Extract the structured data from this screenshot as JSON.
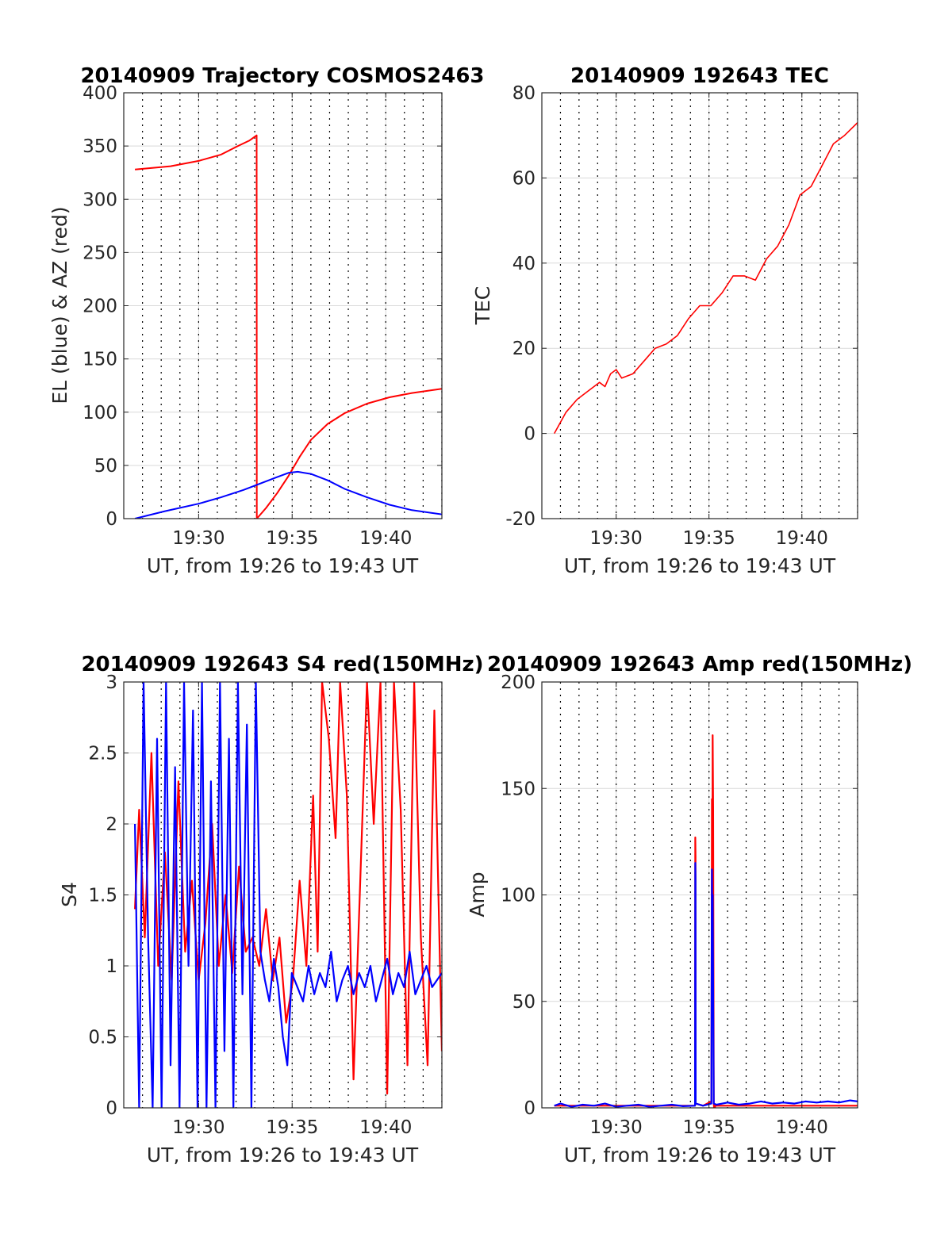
{
  "colors": {
    "el": "#0000ff",
    "az": "#ff0000",
    "tec": "#ff0000",
    "s4_red": "#ff0000",
    "s4_blue": "#0000ff",
    "amp_red": "#ff0000",
    "amp_blue": "#0000ff",
    "grid": "#d9d9d9",
    "dotted": "#000000"
  },
  "chart_data": [
    {
      "id": "trajectory",
      "type": "line",
      "title": "20140909 Trajectory COSMOS2463",
      "xlabel": "UT, from 19:26 to 19:43 UT",
      "ylabel": "EL (blue) & AZ (red)",
      "xlim": [
        19.4333,
        19.7167
      ],
      "ylim": [
        0,
        400
      ],
      "xticks": [
        {
          "v": 19.5,
          "label": "19:30"
        },
        {
          "v": 19.5833,
          "label": "19:35"
        },
        {
          "v": 19.6667,
          "label": "19:40"
        }
      ],
      "yticks": [
        {
          "v": 0,
          "label": "0"
        },
        {
          "v": 50,
          "label": "50"
        },
        {
          "v": 100,
          "label": "100"
        },
        {
          "v": 150,
          "label": "150"
        },
        {
          "v": 200,
          "label": "200"
        },
        {
          "v": 250,
          "label": "250"
        },
        {
          "v": 300,
          "label": "300"
        },
        {
          "v": 350,
          "label": "350"
        },
        {
          "v": 400,
          "label": "400"
        }
      ],
      "grid": true,
      "series": [
        {
          "key": "az",
          "x": [
            19.4433,
            19.475,
            19.5,
            19.52,
            19.535,
            19.545,
            19.5517,
            19.5518,
            19.56,
            19.57,
            19.58,
            19.59,
            19.6,
            19.615,
            19.63,
            19.65,
            19.67,
            19.69,
            19.7167
          ],
          "values": [
            328,
            331,
            336,
            342,
            350,
            355,
            360,
            0,
            10,
            24,
            40,
            58,
            74,
            89,
            99,
            108,
            114,
            118,
            122
          ]
        },
        {
          "key": "el",
          "x": [
            19.4433,
            19.47,
            19.5,
            19.52,
            19.54,
            19.555,
            19.57,
            19.58,
            19.5883,
            19.6,
            19.615,
            19.63,
            19.65,
            19.67,
            19.69,
            19.7167
          ],
          "values": [
            0,
            7,
            14,
            20,
            27,
            33,
            39,
            43,
            44,
            42,
            36,
            28,
            20,
            13,
            8,
            4
          ]
        }
      ]
    },
    {
      "id": "tec",
      "type": "line",
      "title": "20140909 192643 TEC",
      "xlabel": "UT, from 19:26 to 19:43 UT",
      "ylabel": "TEC",
      "xlim": [
        19.4333,
        19.7167
      ],
      "ylim": [
        -20,
        80
      ],
      "xticks": [
        {
          "v": 19.5,
          "label": "19:30"
        },
        {
          "v": 19.5833,
          "label": "19:35"
        },
        {
          "v": 19.6667,
          "label": "19:40"
        }
      ],
      "yticks": [
        {
          "v": -20,
          "label": "-20"
        },
        {
          "v": 0,
          "label": "0"
        },
        {
          "v": 20,
          "label": "20"
        },
        {
          "v": 40,
          "label": "40"
        },
        {
          "v": 60,
          "label": "60"
        },
        {
          "v": 80,
          "label": "80"
        }
      ],
      "grid": true,
      "series": [
        {
          "key": "tec",
          "x": [
            19.4445,
            19.455,
            19.465,
            19.475,
            19.485,
            19.49,
            19.495,
            19.5,
            19.505,
            19.515,
            19.525,
            19.535,
            19.545,
            19.555,
            19.565,
            19.575,
            19.585,
            19.595,
            19.605,
            19.615,
            19.625,
            19.635,
            19.645,
            19.655,
            19.665,
            19.675,
            19.685,
            19.695,
            19.705,
            19.7167
          ],
          "values": [
            0,
            5,
            8,
            10,
            12,
            11,
            14,
            15,
            13,
            14,
            17,
            20,
            21,
            23,
            27,
            30,
            30,
            33,
            37,
            37,
            36,
            41,
            44,
            49,
            56,
            58,
            63,
            68,
            70,
            73
          ]
        }
      ]
    },
    {
      "id": "s4",
      "type": "line",
      "title": "20140909 192643 S4 red(150MHz)",
      "xlabel": "UT, from 19:26 to 19:43 UT",
      "ylabel": "S4",
      "xlim": [
        19.4333,
        19.7167
      ],
      "ylim": [
        0,
        3
      ],
      "xticks": [
        {
          "v": 19.5,
          "label": "19:30"
        },
        {
          "v": 19.5833,
          "label": "19:35"
        },
        {
          "v": 19.6667,
          "label": "19:40"
        }
      ],
      "yticks": [
        {
          "v": 0,
          "label": "0"
        },
        {
          "v": 0.5,
          "label": "0.5"
        },
        {
          "v": 1,
          "label": "1"
        },
        {
          "v": 1.5,
          "label": "1.5"
        },
        {
          "v": 2,
          "label": "2"
        },
        {
          "v": 2.5,
          "label": "2.5"
        },
        {
          "v": 3,
          "label": "3"
        }
      ],
      "grid": true,
      "series": [
        {
          "key": "s4_red",
          "x": [
            19.4433,
            19.447,
            19.452,
            19.458,
            19.464,
            19.47,
            19.476,
            19.482,
            19.488,
            19.494,
            19.5,
            19.506,
            19.512,
            19.518,
            19.524,
            19.53,
            19.536,
            19.542,
            19.548,
            19.554,
            19.56,
            19.566,
            19.572,
            19.578,
            19.584,
            19.59,
            19.596,
            19.602,
            19.606,
            19.61,
            19.616,
            19.622,
            19.626,
            19.632,
            19.638,
            19.644,
            19.65,
            19.656,
            19.662,
            19.668,
            19.674,
            19.68,
            19.686,
            19.692,
            19.698,
            19.704,
            19.71,
            19.7167
          ],
          "values": [
            1.4,
            2.1,
            1.2,
            2.5,
            1.0,
            1.8,
            0.9,
            2.3,
            1.1,
            1.6,
            0.9,
            1.3,
            2.0,
            1.0,
            1.5,
            0.95,
            1.7,
            1.1,
            1.2,
            1.0,
            1.4,
            0.9,
            1.2,
            0.6,
            0.9,
            1.6,
            1.0,
            2.2,
            1.1,
            3.0,
            2.6,
            1.9,
            3.0,
            2.2,
            0.2,
            1.6,
            3.0,
            2.0,
            3.0,
            0.1,
            3.0,
            2.1,
            0.3,
            3.0,
            1.2,
            0.3,
            2.8,
            0.4
          ]
        },
        {
          "key": "s4_blue",
          "x": [
            19.4433,
            19.447,
            19.451,
            19.455,
            19.459,
            19.463,
            19.467,
            19.471,
            19.475,
            19.479,
            19.483,
            19.487,
            19.491,
            19.495,
            19.499,
            19.503,
            19.507,
            19.511,
            19.515,
            19.519,
            19.523,
            19.527,
            19.531,
            19.535,
            19.539,
            19.543,
            19.547,
            19.551,
            19.555,
            19.559,
            19.563,
            19.567,
            19.571,
            19.575,
            19.579,
            19.583,
            19.588,
            19.593,
            19.598,
            19.603,
            19.608,
            19.613,
            19.618,
            19.623,
            19.628,
            19.633,
            19.638,
            19.643,
            19.648,
            19.653,
            19.658,
            19.663,
            19.668,
            19.673,
            19.678,
            19.683,
            19.688,
            19.693,
            19.698,
            19.703,
            19.708,
            19.7167
          ],
          "values": [
            2.0,
            0.0,
            3.0,
            1.2,
            0.0,
            2.6,
            0.0,
            3.0,
            0.3,
            2.4,
            0.0,
            3.0,
            1.0,
            2.8,
            0.0,
            3.0,
            0.0,
            2.3,
            0.0,
            3.0,
            0.4,
            2.6,
            0.0,
            3.0,
            0.8,
            2.7,
            0.0,
            3.0,
            1.1,
            0.9,
            0.75,
            1.05,
            0.85,
            0.5,
            0.3,
            0.95,
            0.85,
            0.75,
            1.0,
            0.8,
            0.95,
            0.85,
            1.1,
            0.75,
            0.9,
            1.0,
            0.8,
            0.95,
            0.85,
            1.0,
            0.75,
            0.9,
            1.05,
            0.8,
            0.95,
            0.85,
            1.1,
            0.8,
            0.9,
            1.0,
            0.85,
            0.95
          ]
        }
      ]
    },
    {
      "id": "amp",
      "type": "line",
      "title": "20140909 192643 Amp red(150MHz)",
      "xlabel": "UT, from 19:26 to 19:43 UT",
      "ylabel": "Amp",
      "xlim": [
        19.4333,
        19.7167
      ],
      "ylim": [
        0,
        200
      ],
      "xticks": [
        {
          "v": 19.5,
          "label": "19:30"
        },
        {
          "v": 19.5833,
          "label": "19:35"
        },
        {
          "v": 19.6667,
          "label": "19:40"
        }
      ],
      "yticks": [
        {
          "v": 0,
          "label": "0"
        },
        {
          "v": 50,
          "label": "50"
        },
        {
          "v": 100,
          "label": "100"
        },
        {
          "v": 150,
          "label": "150"
        },
        {
          "v": 200,
          "label": "200"
        }
      ],
      "grid": true,
      "series": [
        {
          "key": "amp_red",
          "x": [
            19.4445,
            19.5,
            19.56,
            19.5708,
            19.571,
            19.5712,
            19.5714,
            19.578,
            19.5855,
            19.5858,
            19.586,
            19.5863,
            19.5866,
            19.587,
            19.5876,
            19.588,
            19.589,
            19.6,
            19.66,
            19.7167
          ],
          "values": [
            1,
            1,
            1,
            1,
            127,
            118,
            2,
            1,
            3,
            100,
            145,
            80,
            175,
            140,
            2,
            -1,
            1,
            1,
            1,
            1
          ]
        },
        {
          "key": "amp_blue",
          "x": [
            19.4445,
            19.45,
            19.46,
            19.47,
            19.48,
            19.49,
            19.5,
            19.51,
            19.52,
            19.53,
            19.54,
            19.55,
            19.56,
            19.5708,
            19.571,
            19.5712,
            19.5714,
            19.578,
            19.5855,
            19.5858,
            19.586,
            19.5863,
            19.5866,
            19.5876,
            19.59,
            19.6,
            19.61,
            19.62,
            19.63,
            19.64,
            19.65,
            19.66,
            19.67,
            19.68,
            19.69,
            19.7,
            19.71,
            19.7167
          ],
          "values": [
            1,
            2,
            0.5,
            1.5,
            1,
            2,
            0.5,
            1,
            1.5,
            0.5,
            1,
            1.5,
            0.8,
            1,
            115,
            108,
            2,
            1,
            2,
            95,
            112,
            80,
            100,
            2,
            1.5,
            2.5,
            1.5,
            2,
            3,
            2,
            2.5,
            2,
            3,
            2.5,
            3,
            2.5,
            3.5,
            3
          ]
        }
      ]
    }
  ]
}
